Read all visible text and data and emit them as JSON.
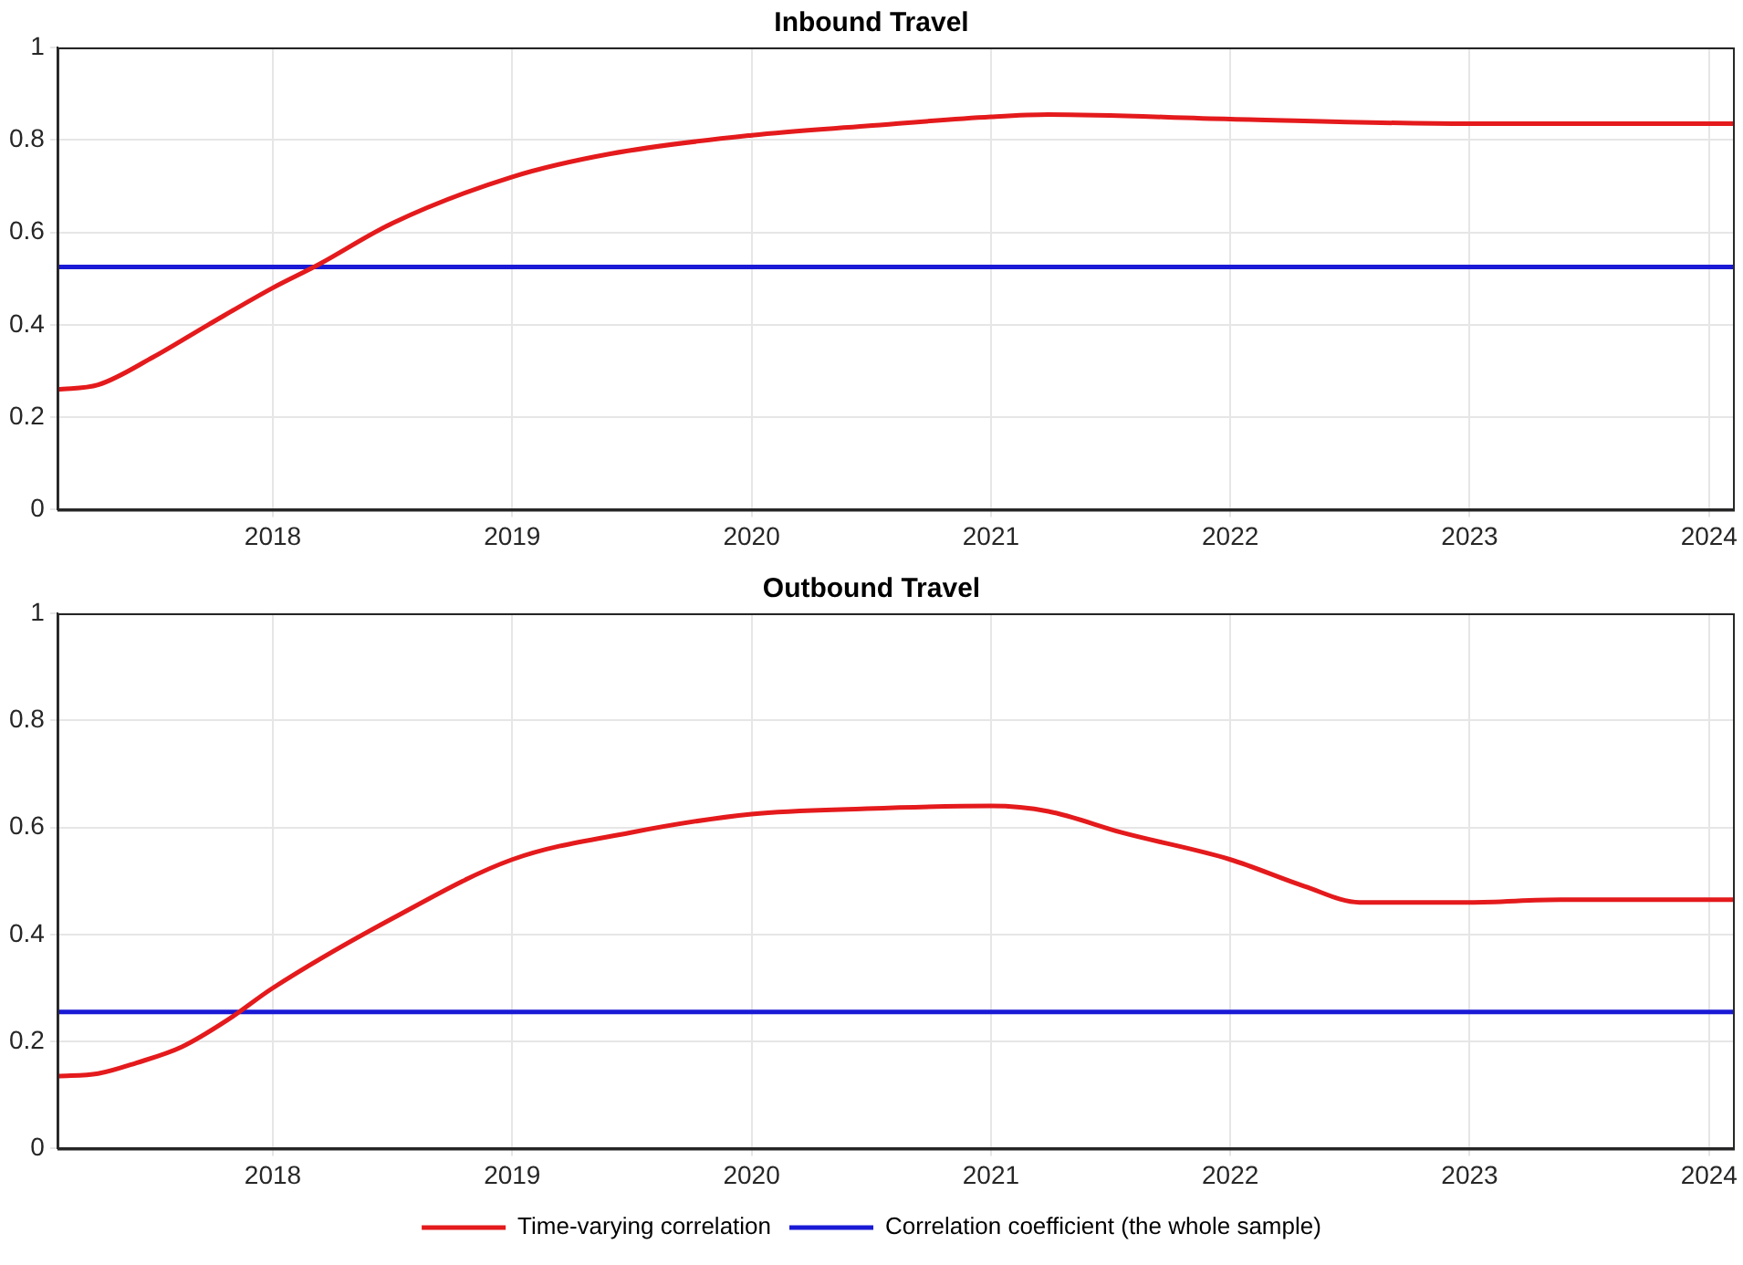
{
  "chart_data": [
    {
      "type": "line",
      "title": "Inbound Travel",
      "xlim": [
        2017.1,
        2024.1
      ],
      "xticks": [
        2018,
        2019,
        2020,
        2021,
        2022,
        2023,
        2024
      ],
      "ylim": [
        0,
        1
      ],
      "yticks": [
        0,
        0.2,
        0.4,
        0.6,
        0.8,
        1
      ],
      "grid": true,
      "marker": "none",
      "line_style": "solid",
      "legend": false,
      "series": [
        {
          "color": "#e41a1c",
          "x": [
            2017.1,
            2017.27,
            2017.5,
            2017.73,
            2018,
            2018.19,
            2018.5,
            2019,
            2019.41,
            2020,
            2020.48,
            2021,
            2021.24,
            2022,
            2023,
            2024.1
          ],
          "values": [
            0.26,
            0.27,
            0.33,
            0.4,
            0.48,
            0.53,
            0.62,
            0.72,
            0.77,
            0.81,
            0.83,
            0.85,
            0.855,
            0.845,
            0.835,
            0.835
          ]
        },
        {
          "color": "#1a1ad6",
          "x": [
            2017.1,
            2024.1
          ],
          "values": [
            0.525,
            0.525
          ]
        }
      ]
    },
    {
      "type": "line",
      "title": "Outbound Travel",
      "xlim": [
        2017.1,
        2024.1
      ],
      "xticks": [
        2018,
        2019,
        2020,
        2021,
        2022,
        2023,
        2024
      ],
      "ylim": [
        0,
        1
      ],
      "yticks": [
        0,
        0.2,
        0.4,
        0.6,
        0.8,
        1
      ],
      "grid": true,
      "marker": "none",
      "line_style": "solid",
      "legend": "bottom",
      "series": [
        {
          "name": "Time-varying correlation",
          "color": "#e41a1c",
          "x": [
            2017.1,
            2017.27,
            2017.43,
            2017.62,
            2017.81,
            2018,
            2018.5,
            2019,
            2019.49,
            2020,
            2020.48,
            2021,
            2021.24,
            2021.55,
            2022,
            2022.31,
            2022.54,
            2023,
            2023.38,
            2024.1
          ],
          "values": [
            0.135,
            0.14,
            0.16,
            0.19,
            0.24,
            0.3,
            0.43,
            0.54,
            0.59,
            0.625,
            0.635,
            0.64,
            0.63,
            0.59,
            0.54,
            0.49,
            0.46,
            0.46,
            0.465,
            0.465
          ]
        },
        {
          "name": "Correlation coefficient (the whole sample)",
          "color": "#1a1ad6",
          "x": [
            2017.1,
            2024.1
          ],
          "values": [
            0.255,
            0.255
          ]
        }
      ]
    }
  ]
}
